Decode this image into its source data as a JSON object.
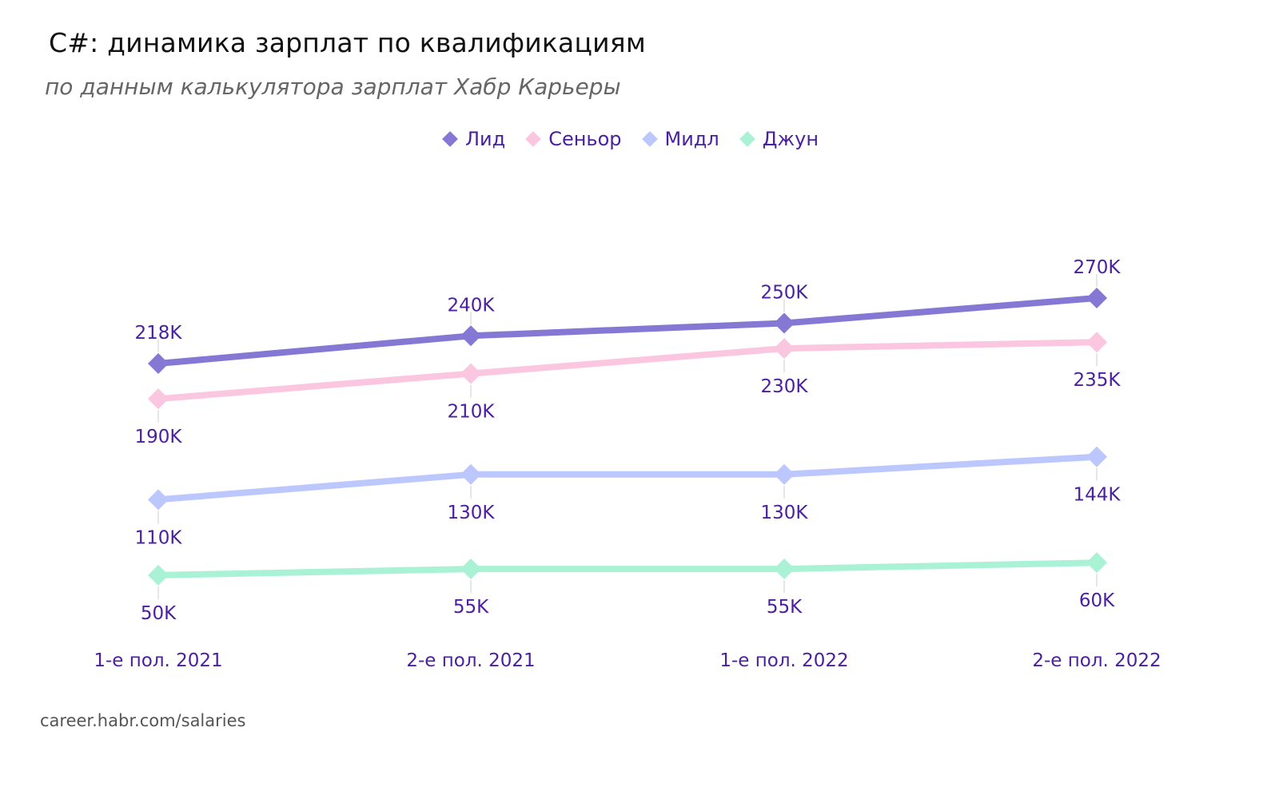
{
  "header": {
    "title": "C#: динамика зарплат по квалификациям",
    "subtitle": "по данным калькулятора зарплат Хабр Карьеры"
  },
  "legend": [
    {
      "label": "Лид",
      "color": "#8577d4"
    },
    {
      "label": "Сеньор",
      "color": "#fbc6df"
    },
    {
      "label": "Мидл",
      "color": "#bcc7fd"
    },
    {
      "label": "Джун",
      "color": "#aaf2d5"
    }
  ],
  "footer": {
    "source": "career.habr.com/salaries"
  },
  "style": {
    "label_color": "#4a1fa0",
    "leader_color": "#e6e6e6"
  },
  "chart_data": {
    "type": "line",
    "title": "C#: динамика зарплат по квалификациям",
    "subtitle": "по данным калькулятора зарплат Хабр Карьеры",
    "xlabel": "",
    "ylabel": "",
    "categories": [
      "1-е пол. 2021",
      "2-е пол. 2021",
      "1-е пол. 2022",
      "2-е пол. 2022"
    ],
    "series": [
      {
        "name": "Лид",
        "color": "#8577d4",
        "values": [
          218,
          240,
          250,
          270
        ],
        "labels": [
          "218K",
          "240K",
          "250K",
          "270K"
        ],
        "label_pos": [
          "above",
          "above",
          "above",
          "above"
        ]
      },
      {
        "name": "Сеньор",
        "color": "#fbc6df",
        "values": [
          190,
          210,
          230,
          235
        ],
        "labels": [
          "190K",
          "210K",
          "230K",
          "235K"
        ],
        "label_pos": [
          "below",
          "below",
          "below",
          "below"
        ]
      },
      {
        "name": "Мидл",
        "color": "#bcc7fd",
        "values": [
          110,
          130,
          130,
          144
        ],
        "labels": [
          "110K",
          "130K",
          "130K",
          "144K"
        ],
        "label_pos": [
          "below",
          "below",
          "below",
          "below"
        ]
      },
      {
        "name": "Джун",
        "color": "#aaf2d5",
        "values": [
          50,
          55,
          55,
          60
        ],
        "labels": [
          "50K",
          "55K",
          "55K",
          "60K"
        ],
        "label_pos": [
          "below",
          "below",
          "below",
          "below"
        ]
      }
    ],
    "unit": "тыс. руб. (K)",
    "marker": "diamond",
    "grid": false,
    "y_axis_visible": false,
    "legend_position": "top-center",
    "source": "career.habr.com/salaries"
  }
}
